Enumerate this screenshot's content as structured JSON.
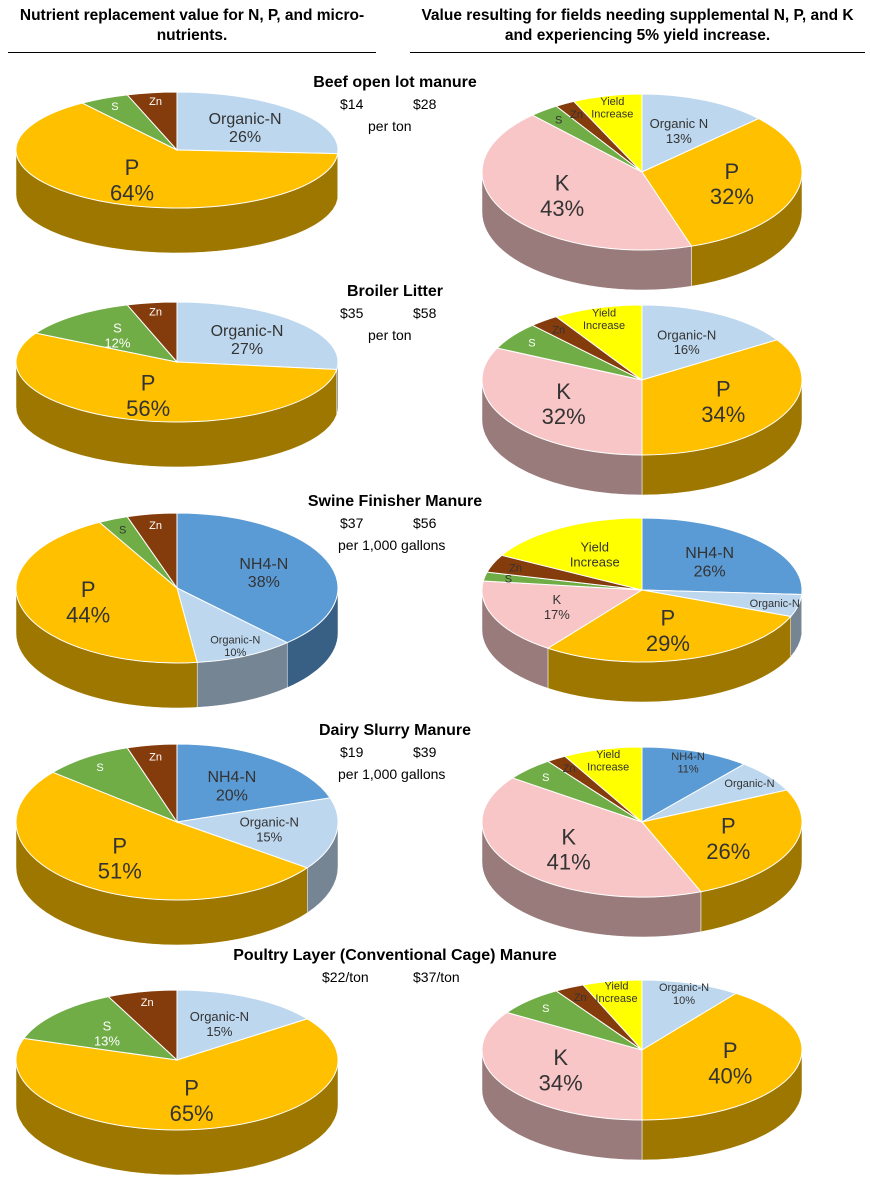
{
  "headers": {
    "left": "Nutrient replacement value for N, P, and micro-nutrients.",
    "right": "Value resulting for fields needing supplemental N, P, and K and experiencing 5% yield increase."
  },
  "colors": {
    "Organic-N": "#bdd7ee",
    "P": "#ffc000",
    "S": "#70ad47",
    "Zn": "#843c0c",
    "NH4-N": "#5b9bd5",
    "K": "#f8c6c7",
    "Yield Increase": "#ffff00"
  },
  "chart_data": [
    {
      "type": "pie",
      "title": "Beef open lot manure",
      "left_value": "$14",
      "right_value": "$28",
      "unit": "per ton",
      "left": [
        {
          "name": "Organic-N",
          "value": 26,
          "label": [
            "Organic-N",
            "26%"
          ]
        },
        {
          "name": "P",
          "value": 64,
          "label": [
            "P",
            "64%"
          ]
        },
        {
          "name": "S",
          "value": 5,
          "label": [
            "S"
          ]
        },
        {
          "name": "Zn",
          "value": 5,
          "label": [
            "Zn"
          ]
        }
      ],
      "right": [
        {
          "name": "Organic-N",
          "value": 13,
          "label": [
            "Organic N",
            "13%"
          ]
        },
        {
          "name": "P",
          "value": 32,
          "label": [
            "P",
            "32%"
          ]
        },
        {
          "name": "K",
          "value": 43,
          "label": [
            "K",
            "43%"
          ]
        },
        {
          "name": "S",
          "value": 3,
          "label": [
            "S"
          ]
        },
        {
          "name": "Zn",
          "value": 2,
          "label": [
            "Zn"
          ]
        },
        {
          "name": "Yield Increase",
          "value": 7,
          "label": [
            "Yield",
            "Increase"
          ]
        }
      ]
    },
    {
      "type": "pie",
      "title": "Broiler Litter",
      "left_value": "$35",
      "right_value": "$58",
      "unit": "per ton",
      "left": [
        {
          "name": "Organic-N",
          "value": 27,
          "label": [
            "Organic-N",
            "27%"
          ]
        },
        {
          "name": "P",
          "value": 56,
          "label": [
            "P",
            "56%"
          ]
        },
        {
          "name": "S",
          "value": 12,
          "label": [
            "S",
            "12%"
          ]
        },
        {
          "name": "Zn",
          "value": 5,
          "label": [
            "Zn"
          ]
        }
      ],
      "right": [
        {
          "name": "Organic-N",
          "value": 16,
          "label": [
            "Organic-N",
            "16%"
          ]
        },
        {
          "name": "P",
          "value": 34,
          "label": [
            "P",
            "34%"
          ]
        },
        {
          "name": "K",
          "value": 32,
          "label": [
            "K",
            "32%"
          ]
        },
        {
          "name": "S",
          "value": 6,
          "label": [
            "S"
          ]
        },
        {
          "name": "Zn",
          "value": 3,
          "label": [
            "Zn"
          ]
        },
        {
          "name": "Yield Increase",
          "value": 9,
          "label": [
            "Yield",
            "Increase"
          ]
        }
      ]
    },
    {
      "type": "pie",
      "title": "Swine Finisher Manure",
      "left_value": "$37",
      "right_value": "$56",
      "unit": "per 1,000 gallons",
      "left": [
        {
          "name": "NH4-N",
          "value": 38,
          "label": [
            "NH4-N",
            "38%"
          ]
        },
        {
          "name": "Organic-N",
          "value": 10,
          "label": [
            "Organic-N",
            "10%"
          ]
        },
        {
          "name": "P",
          "value": 44,
          "label": [
            "P",
            "44%"
          ]
        },
        {
          "name": "S",
          "value": 3,
          "label": [
            "S"
          ]
        },
        {
          "name": "Zn",
          "value": 5,
          "label": [
            "Zn"
          ]
        }
      ],
      "right": [
        {
          "name": "NH4-N",
          "value": 26,
          "label": [
            "NH4-N",
            "26%"
          ]
        },
        {
          "name": "Organic-N",
          "value": 5,
          "label": [
            "Organic-N"
          ]
        },
        {
          "name": "P",
          "value": 29,
          "label": [
            "P",
            "29%"
          ]
        },
        {
          "name": "K",
          "value": 17,
          "label": [
            "K",
            "17%"
          ]
        },
        {
          "name": "S",
          "value": 2,
          "label": [
            "S"
          ]
        },
        {
          "name": "Zn",
          "value": 4,
          "label": [
            "Zn"
          ]
        },
        {
          "name": "Yield Increase",
          "value": 17,
          "label": [
            "Yield",
            "Increase"
          ]
        }
      ]
    },
    {
      "type": "pie",
      "title": "Dairy Slurry Manure",
      "left_value": "$19",
      "right_value": "$39",
      "unit": "per 1,000 gallons",
      "left": [
        {
          "name": "NH4-N",
          "value": 20,
          "label": [
            "NH4-N",
            "20%"
          ]
        },
        {
          "name": "Organic-N",
          "value": 15,
          "label": [
            "Organic-N",
            "15%"
          ]
        },
        {
          "name": "P",
          "value": 51,
          "label": [
            "P",
            "51%"
          ]
        },
        {
          "name": "S",
          "value": 9,
          "label": [
            "S"
          ]
        },
        {
          "name": "Zn",
          "value": 5,
          "label": [
            "Zn"
          ]
        }
      ],
      "right": [
        {
          "name": "NH4-N",
          "value": 11,
          "label": [
            "NH4-N",
            "11%"
          ]
        },
        {
          "name": "Organic-N",
          "value": 7,
          "label": [
            "Organic-N"
          ]
        },
        {
          "name": "P",
          "value": 26,
          "label": [
            "P",
            "26%"
          ]
        },
        {
          "name": "K",
          "value": 41,
          "label": [
            "K",
            "41%"
          ]
        },
        {
          "name": "S",
          "value": 5,
          "label": [
            "S"
          ]
        },
        {
          "name": "Zn",
          "value": 2,
          "label": [
            "Zn"
          ]
        },
        {
          "name": "Yield Increase",
          "value": 8,
          "label": [
            "Yield",
            "Increase"
          ]
        }
      ]
    },
    {
      "type": "pie",
      "title": "Poultry Layer (Conventional Cage) Manure",
      "left_value": "$22/ton",
      "right_value": "$37/ton",
      "unit": "",
      "left": [
        {
          "name": "Organic-N",
          "value": 15,
          "label": [
            "Organic-N",
            "15%"
          ]
        },
        {
          "name": "P",
          "value": 65,
          "label": [
            "P",
            "65%"
          ]
        },
        {
          "name": "S",
          "value": 13,
          "label": [
            "S",
            "13%"
          ]
        },
        {
          "name": "Zn",
          "value": 7,
          "label": [
            "Zn"
          ]
        }
      ],
      "right": [
        {
          "name": "Organic-N",
          "value": 10,
          "label": [
            "Organic-N",
            "10%"
          ]
        },
        {
          "name": "P",
          "value": 40,
          "label": [
            "P",
            "40%"
          ]
        },
        {
          "name": "K",
          "value": 34,
          "label": [
            "K",
            "34%"
          ]
        },
        {
          "name": "S",
          "value": 7,
          "label": [
            "S"
          ]
        },
        {
          "name": "Zn",
          "value": 3,
          "label": [
            "Zn"
          ]
        },
        {
          "name": "Yield Increase",
          "value": 6,
          "label": [
            "Yield",
            "Increase"
          ]
        }
      ]
    }
  ]
}
